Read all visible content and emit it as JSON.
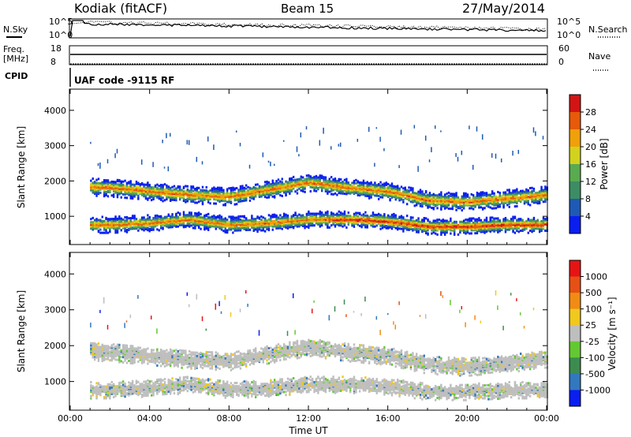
{
  "header": {
    "station": "Kodiak (fitACF)",
    "beam": "Beam 15",
    "date": "27/May/2014"
  },
  "noise_panel": {
    "left_label": "N.Sky",
    "right_label": "N.Search",
    "left_ticks": [
      "10^5",
      "10^0"
    ],
    "right_ticks": [
      "10^5",
      "10^0"
    ]
  },
  "freq_panel": {
    "left_label_1": "Freq.",
    "left_label_2": "[MHz]",
    "right_label": "Nave",
    "left_ticks": [
      "18",
      "8"
    ],
    "right_ticks": [
      "60",
      "0"
    ]
  },
  "cpid_panel": {
    "label": "CPID",
    "text": "UAF code -9115 RF"
  },
  "time_axis": {
    "label": "Time UT",
    "ticks": [
      "00:00",
      "04:00",
      "08:00",
      "12:00",
      "16:00",
      "20:00",
      "00:00"
    ]
  },
  "chart_data": [
    {
      "type": "heatmap",
      "panel": "power",
      "ylabel": "Slant Range [km]",
      "yticks": [
        1000,
        2000,
        3000,
        4000
      ],
      "ylim": [
        200,
        4600
      ],
      "xlim_hours": [
        0,
        24
      ],
      "colorbar": {
        "label": "Power [dB]",
        "ticks": [
          "28",
          "24",
          "20",
          "16",
          "12",
          "8",
          "4"
        ],
        "colors": [
          "#0a1ef0",
          "#1e5ab4",
          "#3c8c64",
          "#5aaa50",
          "#d2d21e",
          "#f0a00a",
          "#e65a0a",
          "#d21414"
        ]
      },
      "bands": [
        {
          "name": "upper",
          "center_km": [
            1850,
            1800,
            1700,
            1600,
            1550,
            1750,
            1950,
            1800,
            1700,
            1450,
            1400,
            1500,
            1600
          ]
        },
        {
          "name": "lower",
          "center_km": [
            750,
            750,
            800,
            900,
            750,
            800,
            900,
            900,
            850,
            700,
            700,
            750,
            750
          ]
        }
      ]
    },
    {
      "type": "heatmap",
      "panel": "velocity",
      "ylabel": "Slant Range [km]",
      "yticks": [
        1000,
        2000,
        3000,
        4000
      ],
      "ylim": [
        200,
        4600
      ],
      "xlim_hours": [
        0,
        24
      ],
      "colorbar": {
        "label": "Velocity [m s⁻¹]",
        "ticks": [
          "1000",
          "500",
          "100",
          "25",
          "-25",
          "-100",
          "-500",
          "-1000"
        ],
        "colors": [
          "#0a1ef0",
          "#3278be",
          "#3c8c50",
          "#64c832",
          "#bebebe",
          "#f0c81e",
          "#f08c14",
          "#e65014",
          "#e61414"
        ]
      },
      "bands": [
        {
          "name": "upper",
          "center_km": [
            1850,
            1800,
            1700,
            1600,
            1550,
            1750,
            1950,
            1800,
            1700,
            1450,
            1400,
            1500,
            1600
          ]
        },
        {
          "name": "lower",
          "center_km": [
            750,
            750,
            800,
            900,
            750,
            800,
            900,
            900,
            850,
            700,
            700,
            750,
            750
          ]
        }
      ]
    }
  ]
}
